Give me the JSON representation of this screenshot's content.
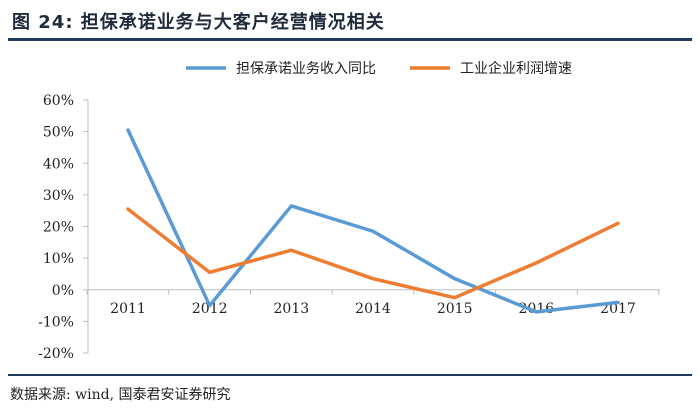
{
  "figure": {
    "title": "图 24:   担保承诺业务与大客户经营情况相关",
    "source_prefix": "数据来源: ",
    "source_text": "wind, 国泰君安证券研究"
  },
  "chart_data": {
    "type": "line",
    "title": "",
    "xlabel": "",
    "ylabel": "",
    "categories": [
      "2011",
      "2012",
      "2013",
      "2014",
      "2015",
      "2016",
      "2017"
    ],
    "ylim": [
      -20,
      60
    ],
    "yticks": [
      -20,
      -10,
      0,
      10,
      20,
      30,
      40,
      50,
      60
    ],
    "ytick_labels": [
      "-20%",
      "-10%",
      "0%",
      "10%",
      "20%",
      "30%",
      "40%",
      "50%",
      "60%"
    ],
    "grid": false,
    "legend_position": "top",
    "series": [
      {
        "name": "担保承诺业务收入同比",
        "color": "#5b9bd5",
        "values": [
          50.5,
          -5,
          26.5,
          18.5,
          3.5,
          -7,
          -4
        ]
      },
      {
        "name": "工业企业利润增速",
        "color": "#ed7d31",
        "values": [
          25.5,
          5.5,
          12.5,
          3.5,
          -2.5,
          8.5,
          21
        ]
      }
    ]
  }
}
